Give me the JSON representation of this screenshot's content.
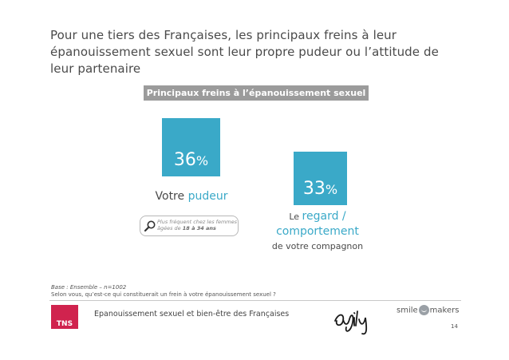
{
  "title": "Pour une tiers des Françaises, les principaux freins à leur épanouissement sexuel sont leur propre pudeur ou l’attitude de leur partenaire",
  "chart_data": {
    "type": "bar",
    "title": "Principaux freins à l’épanouissement sexuel",
    "unit": "%",
    "categories": [
      "Votre pudeur",
      "Le regard / comportement de votre compagnon"
    ],
    "values": [
      36,
      33
    ],
    "colors": {
      "bar": "#3aa9c8"
    },
    "labels": [
      {
        "prefix": "Votre ",
        "highlight": "pudeur",
        "suffix": ""
      },
      {
        "prefix": "Le ",
        "highlight": "regard / comportement",
        "suffix": "de votre compagnon"
      }
    ],
    "note": {
      "text": "Plus fréquent chez les femmes âgées de",
      "bold": "18 à 34 ans"
    }
  },
  "base": "Base : Ensemble – n=1002",
  "question": "Selon vous, qu’est-ce qui constituerait un frein à votre épanouissement sexuel ?",
  "footer": {
    "logo": "TNS",
    "text": "Epanouissement sexuel et bien-être des Françaises",
    "brand1": "smile",
    "brand2": "makers",
    "page": "14"
  }
}
